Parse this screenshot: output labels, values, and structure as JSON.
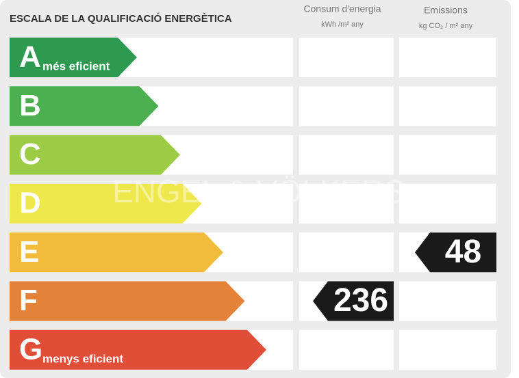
{
  "title": "ESCALA DE LA QUALIFICACIÓ ENERGÈTICA",
  "columns": [
    {
      "title": "Consum d'energia",
      "unit": "kWh /m² any"
    },
    {
      "title": "Emissions",
      "unit": "kg CO₂ / m² any"
    }
  ],
  "watermark": "ENGEL & VÖLKERS",
  "rows": [
    {
      "letter": "A",
      "color": "#2e9a4f",
      "note": "més eficient"
    },
    {
      "letter": "B",
      "color": "#4cb050"
    },
    {
      "letter": "C",
      "color": "#9ccb45"
    },
    {
      "letter": "D",
      "color": "#eee84c"
    },
    {
      "letter": "E",
      "color": "#f1bb3b"
    },
    {
      "letter": "F",
      "color": "#e5823a"
    },
    {
      "letter": "G",
      "color": "#e04e38",
      "note": "menys eficient"
    }
  ],
  "consumption": {
    "rating": "F",
    "value": 236
  },
  "emissions": {
    "rating": "E",
    "value": 48
  }
}
